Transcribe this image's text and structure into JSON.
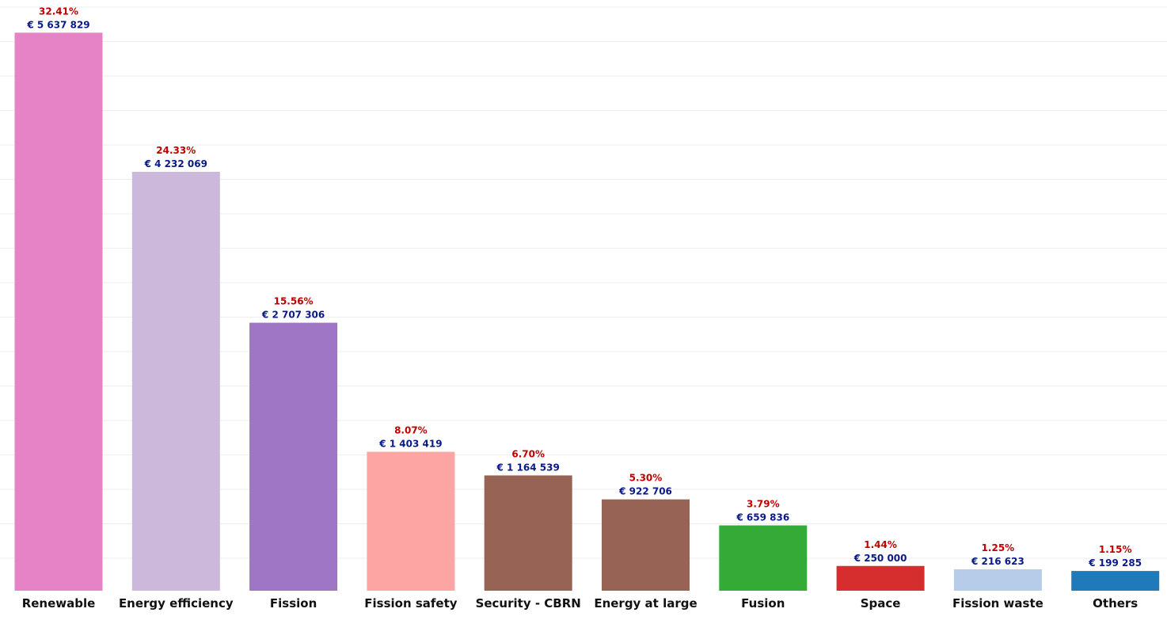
{
  "chart_data": {
    "type": "bar",
    "title": "",
    "xlabel": "",
    "ylabel": "",
    "ylim": [
      0,
      5800000
    ],
    "grid": true,
    "legend": "none",
    "categories": [
      "Renewable",
      "Energy efficiency",
      "Fission",
      "Fission safety",
      "Security - CBRN",
      "Energy at large",
      "Fusion",
      "Space",
      "Fission waste",
      "Others"
    ],
    "values": [
      5637829,
      4232069,
      2707306,
      1403419,
      1164539,
      922706,
      659836,
      250000,
      216623,
      199285
    ],
    "value_labels": [
      "€ 5 637 829",
      "€ 4 232 069",
      "€ 2 707 306",
      "€ 1 403 419",
      "€ 1 164 539",
      "€ 922 706",
      "€ 659 836",
      "€ 250 000",
      "€ 216 623",
      "€ 199 285"
    ],
    "percent_labels": [
      "32.41%",
      "24.33%",
      "15.56%",
      "8.07%",
      "6.70%",
      "5.30%",
      "3.79%",
      "1.44%",
      "1.25%",
      "1.15%"
    ],
    "colors": [
      "#e683c7",
      "#cbb8da",
      "#9e76c5",
      "#fca5a2",
      "#976355",
      "#976355",
      "#33ab36",
      "#d62d2e",
      "#b7cce9",
      "#2079b8"
    ]
  },
  "colors": {
    "percent_label": "#c00000",
    "value_label": "#0a1a8a",
    "category_label": "#111111",
    "grid": "#eeeeee"
  }
}
